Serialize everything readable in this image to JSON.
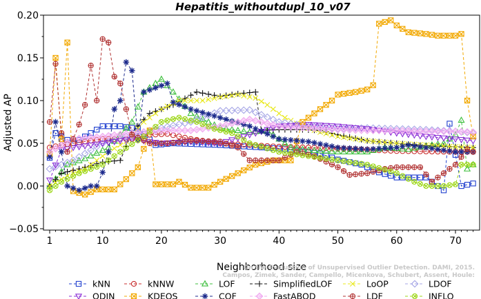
{
  "chart_data": {
    "type": "line",
    "title": "Hepatitis_withoutdupl_10_v07",
    "xlabel": "Neighborhood size",
    "ylabel": "Adjusted AP",
    "xlim": [
      0,
      73.5
    ],
    "ylim": [
      -0.05,
      0.2
    ],
    "x_ticks": [
      1,
      10,
      20,
      30,
      40,
      50,
      60,
      70
    ],
    "y_ticks": [
      -0.05,
      0.0,
      0.05,
      0.1,
      0.15,
      0.2
    ],
    "x_tick_labels": [
      "1",
      "10",
      "20",
      "30",
      "40",
      "50",
      "60",
      "70"
    ],
    "y_tick_labels": [
      "−0.05",
      "0.00",
      "0.05",
      "0.10",
      "0.15",
      "0.20"
    ],
    "grid": false,
    "legend_position": "bottom",
    "credit": "Campos, Zimek, Sander, Campello, Micenkova, Schubert, Assent, Houle: On the Evaluation of Unsupervised Outlier Detection. DAMI, 2015.",
    "series": [
      {
        "name": "kNN",
        "color": "#1f3fcf",
        "marker": "square",
        "knots": [
          [
            1,
            0.033
          ],
          [
            2,
            0.062
          ],
          [
            5,
            0.05
          ],
          [
            10,
            0.07
          ],
          [
            13,
            0.07
          ],
          [
            16,
            0.067
          ],
          [
            19,
            0.048
          ],
          [
            22,
            0.05
          ],
          [
            30,
            0.048
          ],
          [
            40,
            0.044
          ],
          [
            47,
            0.038
          ],
          [
            50,
            0.031
          ],
          [
            54,
            0.025
          ],
          [
            57,
            0.016
          ],
          [
            60,
            0.01
          ],
          [
            65,
            0.01
          ],
          [
            68,
            -0.005
          ],
          [
            69,
            0.073
          ],
          [
            71,
            0.0
          ],
          [
            73,
            0.003
          ]
        ]
      },
      {
        "name": "kNNW",
        "color": "#c82d2d",
        "marker": "circle",
        "knots": [
          [
            1,
            0.045
          ],
          [
            3,
            0.048
          ],
          [
            6,
            0.051
          ],
          [
            10,
            0.055
          ],
          [
            15,
            0.055
          ],
          [
            18,
            0.06
          ],
          [
            21,
            0.061
          ],
          [
            25,
            0.055
          ],
          [
            30,
            0.05
          ],
          [
            40,
            0.046
          ],
          [
            50,
            0.044
          ],
          [
            60,
            0.041
          ],
          [
            70,
            0.04
          ],
          [
            73,
            0.04
          ]
        ]
      },
      {
        "name": "LOF",
        "color": "#3cbe3c",
        "marker": "triangle-up",
        "knots": [
          [
            1,
            0.0
          ],
          [
            4,
            0.025
          ],
          [
            7,
            0.032
          ],
          [
            11,
            0.045
          ],
          [
            15,
            0.075
          ],
          [
            17,
            0.11
          ],
          [
            20,
            0.125
          ],
          [
            22,
            0.11
          ],
          [
            25,
            0.085
          ],
          [
            30,
            0.068
          ],
          [
            35,
            0.063
          ],
          [
            38,
            0.065
          ],
          [
            42,
            0.045
          ],
          [
            45,
            0.042
          ],
          [
            50,
            0.04
          ],
          [
            55,
            0.04
          ],
          [
            58,
            0.045
          ],
          [
            62,
            0.043
          ],
          [
            65,
            0.047
          ],
          [
            68,
            0.05
          ],
          [
            70,
            0.06
          ],
          [
            71,
            0.077
          ],
          [
            72,
            0.02
          ],
          [
            73,
            0.025
          ]
        ]
      },
      {
        "name": "SimplifiedLOF",
        "color": "#111111",
        "marker": "plus",
        "knots": [
          [
            1,
            0.0
          ],
          [
            3,
            0.015
          ],
          [
            6,
            0.02
          ],
          [
            10,
            0.028
          ],
          [
            13,
            0.03
          ],
          [
            15,
            0.063
          ],
          [
            18,
            0.085
          ],
          [
            22,
            0.095
          ],
          [
            26,
            0.11
          ],
          [
            30,
            0.105
          ],
          [
            33,
            0.108
          ],
          [
            36,
            0.11
          ],
          [
            37,
            0.065
          ],
          [
            40,
            0.066
          ],
          [
            44,
            0.066
          ],
          [
            47,
            0.065
          ],
          [
            50,
            0.06
          ],
          [
            55,
            0.053
          ],
          [
            60,
            0.05
          ],
          [
            65,
            0.047
          ],
          [
            70,
            0.046
          ],
          [
            73,
            0.045
          ]
        ]
      },
      {
        "name": "LoOP",
        "color": "#e8e81a",
        "marker": "cross",
        "knots": [
          [
            1,
            0.0
          ],
          [
            4,
            0.012
          ],
          [
            7,
            0.02
          ],
          [
            11,
            0.04
          ],
          [
            14,
            0.052
          ],
          [
            17,
            0.075
          ],
          [
            20,
            0.09
          ],
          [
            23,
            0.1
          ],
          [
            27,
            0.1
          ],
          [
            30,
            0.104
          ],
          [
            33,
            0.107
          ],
          [
            36,
            0.103
          ],
          [
            38,
            0.095
          ],
          [
            41,
            0.08
          ],
          [
            44,
            0.07
          ],
          [
            47,
            0.063
          ],
          [
            50,
            0.058
          ],
          [
            55,
            0.053
          ],
          [
            60,
            0.05
          ],
          [
            65,
            0.048
          ],
          [
            70,
            0.046
          ],
          [
            73,
            0.045
          ]
        ]
      },
      {
        "name": "LDOF",
        "color": "#a6a6e6",
        "marker": "diamond",
        "knots": [
          [
            1,
            0.02
          ],
          [
            5,
            0.03
          ],
          [
            10,
            0.05
          ],
          [
            15,
            0.06
          ],
          [
            20,
            0.068
          ],
          [
            25,
            0.075
          ],
          [
            30,
            0.088
          ],
          [
            35,
            0.089
          ],
          [
            40,
            0.075
          ],
          [
            45,
            0.07
          ],
          [
            50,
            0.067
          ],
          [
            55,
            0.068
          ],
          [
            60,
            0.067
          ],
          [
            65,
            0.066
          ],
          [
            70,
            0.064
          ],
          [
            73,
            0.062
          ]
        ]
      },
      {
        "name": "ODIN",
        "color": "#8a2ed6",
        "marker": "triangle-down",
        "knots": [
          [
            1,
            0.007
          ],
          [
            3,
            0.042
          ],
          [
            5,
            0.045
          ],
          [
            10,
            0.05
          ],
          [
            15,
            0.055
          ],
          [
            20,
            0.05
          ],
          [
            25,
            0.052
          ],
          [
            30,
            0.05
          ],
          [
            35,
            0.06
          ],
          [
            40,
            0.07
          ],
          [
            45,
            0.072
          ],
          [
            50,
            0.07
          ],
          [
            55,
            0.067
          ],
          [
            60,
            0.062
          ],
          [
            65,
            0.058
          ],
          [
            70,
            0.055
          ],
          [
            73,
            0.053
          ]
        ]
      },
      {
        "name": "KDEOS",
        "color": "#f2a800",
        "marker": "square-x",
        "knots": [
          [
            1,
            0.038
          ],
          [
            2,
            0.15
          ],
          [
            3,
            0.055
          ],
          [
            4,
            0.168
          ],
          [
            5,
            -0.006
          ],
          [
            7,
            -0.01
          ],
          [
            9,
            -0.004
          ],
          [
            12,
            -0.004
          ],
          [
            14,
            0.008
          ],
          [
            16,
            0.022
          ],
          [
            18,
            0.065
          ],
          [
            19,
            0.002
          ],
          [
            22,
            0.002
          ],
          [
            23,
            0.005
          ],
          [
            25,
            -0.002
          ],
          [
            28,
            -0.002
          ],
          [
            30,
            0.005
          ],
          [
            33,
            0.015
          ],
          [
            36,
            0.025
          ],
          [
            39,
            0.03
          ],
          [
            42,
            0.03
          ],
          [
            44,
            0.075
          ],
          [
            47,
            0.09
          ],
          [
            49,
            0.1
          ],
          [
            50,
            0.107
          ],
          [
            53,
            0.11
          ],
          [
            55,
            0.113
          ],
          [
            56,
            0.118
          ],
          [
            57,
            0.19
          ],
          [
            59,
            0.194
          ],
          [
            60,
            0.188
          ],
          [
            62,
            0.18
          ],
          [
            65,
            0.178
          ],
          [
            67,
            0.176
          ],
          [
            70,
            0.176
          ],
          [
            71,
            0.178
          ],
          [
            72,
            0.1
          ],
          [
            73,
            0.058
          ]
        ]
      },
      {
        "name": "COF",
        "color": "#1c2a8c",
        "marker": "asterisk",
        "knots": [
          [
            1,
            0.034
          ],
          [
            2,
            0.075
          ],
          [
            3,
            0.04
          ],
          [
            4,
            0.0
          ],
          [
            6,
            -0.005
          ],
          [
            8,
            0.0
          ],
          [
            9,
            0.0
          ],
          [
            10,
            0.016
          ],
          [
            11,
            0.04
          ],
          [
            12,
            0.09
          ],
          [
            13,
            0.1
          ],
          [
            14,
            0.145
          ],
          [
            15,
            0.135
          ],
          [
            16,
            0.055
          ],
          [
            17,
            0.11
          ],
          [
            19,
            0.115
          ],
          [
            21,
            0.12
          ],
          [
            22,
            0.098
          ],
          [
            25,
            0.09
          ],
          [
            30,
            0.08
          ],
          [
            35,
            0.07
          ],
          [
            40,
            0.055
          ],
          [
            45,
            0.052
          ],
          [
            50,
            0.045
          ],
          [
            55,
            0.043
          ],
          [
            60,
            0.045
          ],
          [
            62,
            0.048
          ],
          [
            65,
            0.045
          ],
          [
            68,
            0.042
          ],
          [
            70,
            0.04
          ],
          [
            73,
            0.04
          ]
        ]
      },
      {
        "name": "FastABOD",
        "color": "#f0a8f0",
        "marker": "diamond-filled",
        "knots": [
          [
            1,
            0.04
          ],
          [
            5,
            0.055
          ],
          [
            10,
            0.058
          ],
          [
            15,
            0.062
          ],
          [
            20,
            0.065
          ],
          [
            25,
            0.065
          ],
          [
            30,
            0.07
          ],
          [
            35,
            0.078
          ],
          [
            40,
            0.07
          ],
          [
            45,
            0.068
          ],
          [
            50,
            0.066
          ],
          [
            55,
            0.065
          ],
          [
            60,
            0.065
          ],
          [
            65,
            0.064
          ],
          [
            70,
            0.064
          ],
          [
            73,
            0.063
          ]
        ]
      },
      {
        "name": "LDF",
        "color": "#b03030",
        "marker": "circle-plus",
        "knots": [
          [
            1,
            0.075
          ],
          [
            2,
            0.143
          ],
          [
            3,
            0.062
          ],
          [
            4,
            0.04
          ],
          [
            5,
            0.055
          ],
          [
            6,
            0.072
          ],
          [
            7,
            0.095
          ],
          [
            8,
            0.141
          ],
          [
            9,
            0.1
          ],
          [
            10,
            0.172
          ],
          [
            11,
            0.168
          ],
          [
            12,
            0.128
          ],
          [
            13,
            0.12
          ],
          [
            14,
            0.09
          ],
          [
            15,
            0.06
          ],
          [
            18,
            0.05
          ],
          [
            21,
            0.05
          ],
          [
            25,
            0.053
          ],
          [
            30,
            0.052
          ],
          [
            33,
            0.045
          ],
          [
            35,
            0.03
          ],
          [
            40,
            0.03
          ],
          [
            43,
            0.04
          ],
          [
            46,
            0.035
          ],
          [
            50,
            0.022
          ],
          [
            52,
            0.013
          ],
          [
            55,
            0.015
          ],
          [
            58,
            0.02
          ],
          [
            60,
            0.022
          ],
          [
            64,
            0.022
          ],
          [
            66,
            0.005
          ],
          [
            67,
            0.01
          ],
          [
            70,
            0.025
          ],
          [
            72,
            0.043
          ],
          [
            73,
            0.04
          ]
        ]
      },
      {
        "name": "INFLO",
        "color": "#9cd616",
        "marker": "circle-cross",
        "knots": [
          [
            1,
            -0.005
          ],
          [
            3,
            0.005
          ],
          [
            6,
            0.015
          ],
          [
            10,
            0.025
          ],
          [
            13,
            0.04
          ],
          [
            17,
            0.058
          ],
          [
            20,
            0.075
          ],
          [
            23,
            0.08
          ],
          [
            26,
            0.075
          ],
          [
            29,
            0.067
          ],
          [
            32,
            0.062
          ],
          [
            35,
            0.05
          ],
          [
            40,
            0.04
          ],
          [
            45,
            0.035
          ],
          [
            50,
            0.03
          ],
          [
            55,
            0.025
          ],
          [
            60,
            0.015
          ],
          [
            63,
            0.005
          ],
          [
            65,
            0.0
          ],
          [
            68,
            0.0
          ],
          [
            70,
            0.002
          ],
          [
            71,
            0.025
          ],
          [
            73,
            0.025
          ]
        ]
      }
    ]
  }
}
